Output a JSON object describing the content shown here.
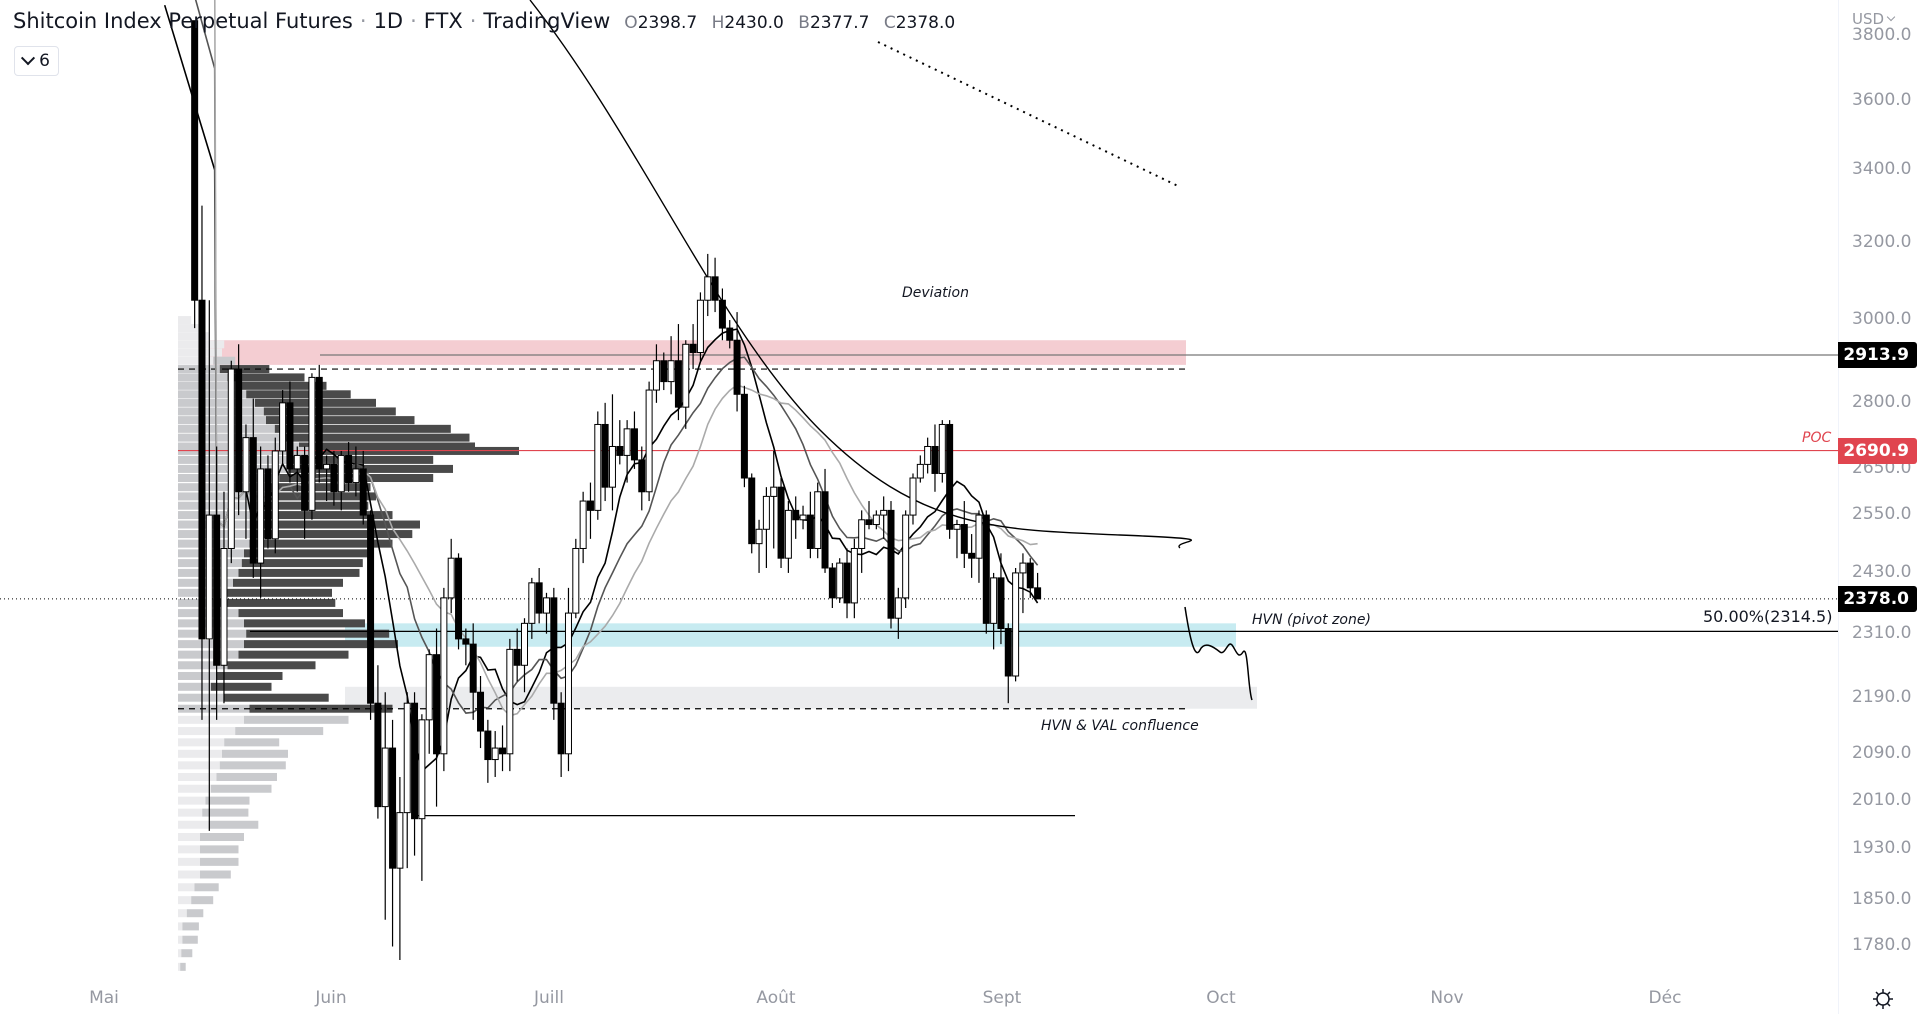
{
  "header": {
    "symbol_title": "Shitcoin Index Perpetual Futures",
    "interval": "1D",
    "exchange": "FTX",
    "source": "TradingView",
    "ohlc": {
      "open_key": "O",
      "open": "2398.7",
      "high_key": "H",
      "high": "2430.0",
      "low_key": "B",
      "low": "2377.7",
      "close_key": "C",
      "close": "2378.0"
    },
    "indicators_collapse": {
      "count": "6",
      "icon": "chevron-down-icon"
    }
  },
  "price_axis": {
    "currency": "USD",
    "labels": [
      "3800.0",
      "3600.0",
      "3400.0",
      "3200.0",
      "3000.0",
      "2800.0",
      "2650.0",
      "2550.0",
      "2430.0",
      "2310.0",
      "2190.0",
      "2090.0",
      "2010.0",
      "1930.0",
      "1850.0",
      "1780.0"
    ],
    "tags": [
      {
        "value": "2913.9",
        "color": "#000000"
      },
      {
        "value": "2690.9",
        "color": "#e0454f"
      },
      {
        "value": "2378.0",
        "color": "#000000"
      }
    ]
  },
  "time_axis": {
    "labels": [
      "Mai",
      "Juin",
      "Juill",
      "Août",
      "Sept",
      "Oct",
      "Nov",
      "Déc"
    ],
    "settings_icon": "gear-icon"
  },
  "annotations": {
    "deviation": "Deviation",
    "poc": "POC",
    "hvn_pivot": "HVN (pivot zone)",
    "hvn_val": "HVN & VAL confluence",
    "fib_50": "50.00%(2314.5)"
  },
  "colors": {
    "up_body": "#ffffff",
    "down_body": "#000000",
    "wick": "#000000",
    "poc_line": "#e0454f",
    "resistance_zone": "#f4cdd2",
    "pivot_zone": "#c7ebf1",
    "val_zone": "#ebecee",
    "vp_up_dark": "#4a4a4a",
    "vp_up_light": "#c9cacd",
    "vp_down_light": "#ebebed"
  },
  "chart_data": {
    "type": "candlestick",
    "title": "Shitcoin Index Perpetual Futures · 1D · FTX",
    "scale": "log",
    "ylim": [
      1740,
      3850
    ],
    "x_months": [
      "Mai",
      "Juin",
      "Juill",
      "Août",
      "Sept",
      "Oct",
      "Nov",
      "Déc"
    ],
    "levels": {
      "resistance_line": 2913.9,
      "poc": 2690.9,
      "last_close": 2378.0,
      "fib_50": 2314.5,
      "val_dashed": 2170,
      "range_low": 1985,
      "upper_dashed": 2880
    },
    "zones": [
      {
        "name": "resistance",
        "from": 2890,
        "to": 2950
      },
      {
        "name": "HVN pivot",
        "from": 2285,
        "to": 2330
      },
      {
        "name": "HVN & VAL confluence",
        "from": 2170,
        "to": 2210
      }
    ],
    "start_day_offset": 5,
    "candles": [
      [
        3850,
        3850,
        2980,
        3050
      ],
      [
        3050,
        3300,
        2150,
        2300
      ],
      [
        2300,
        3050,
        1960,
        2550
      ],
      [
        2550,
        2700,
        2150,
        2250
      ],
      [
        2250,
        2600,
        2180,
        2480
      ],
      [
        2480,
        2900,
        2450,
        2880
      ],
      [
        2880,
        2940,
        2550,
        2600
      ],
      [
        2600,
        2750,
        2500,
        2720
      ],
      [
        2720,
        2810,
        2420,
        2450
      ],
      [
        2450,
        2700,
        2380,
        2650
      ],
      [
        2650,
        2680,
        2480,
        2500
      ],
      [
        2500,
        2720,
        2470,
        2690
      ],
      [
        2690,
        2830,
        2660,
        2800
      ],
      [
        2800,
        2850,
        2620,
        2650
      ],
      [
        2650,
        2700,
        2600,
        2680
      ],
      [
        2680,
        2700,
        2500,
        2560
      ],
      [
        2560,
        2870,
        2540,
        2860
      ],
      [
        2860,
        2890,
        2620,
        2650
      ],
      [
        2650,
        2680,
        2580,
        2660
      ],
      [
        2660,
        2690,
        2570,
        2600
      ],
      [
        2600,
        2690,
        2560,
        2680
      ],
      [
        2680,
        2710,
        2600,
        2620
      ],
      [
        2620,
        2700,
        2590,
        2650
      ],
      [
        2650,
        2690,
        2530,
        2550
      ],
      [
        2550,
        2560,
        2150,
        2180
      ],
      [
        2180,
        2250,
        1980,
        2000
      ],
      [
        2000,
        2200,
        1820,
        2100
      ],
      [
        2100,
        2150,
        1780,
        1900
      ],
      [
        1900,
        2050,
        1760,
        1990
      ],
      [
        1990,
        2200,
        1900,
        2180
      ],
      [
        2180,
        2200,
        1920,
        1980
      ],
      [
        1980,
        2160,
        1880,
        2150
      ],
      [
        2150,
        2280,
        2090,
        2270
      ],
      [
        2270,
        2320,
        2000,
        2090
      ],
      [
        2090,
        2400,
        2060,
        2380
      ],
      [
        2380,
        2500,
        2350,
        2460
      ],
      [
        2460,
        2470,
        2280,
        2300
      ],
      [
        2300,
        2320,
        2250,
        2290
      ],
      [
        2290,
        2330,
        2150,
        2200
      ],
      [
        2200,
        2230,
        2100,
        2130
      ],
      [
        2130,
        2150,
        2040,
        2080
      ],
      [
        2080,
        2130,
        2050,
        2100
      ],
      [
        2100,
        2140,
        2060,
        2090
      ],
      [
        2090,
        2300,
        2060,
        2280
      ],
      [
        2280,
        2320,
        2220,
        2250
      ],
      [
        2250,
        2340,
        2200,
        2330
      ],
      [
        2330,
        2420,
        2300,
        2410
      ],
      [
        2410,
        2440,
        2330,
        2350
      ],
      [
        2350,
        2390,
        2310,
        2380
      ],
      [
        2380,
        2400,
        2150,
        2180
      ],
      [
        2180,
        2200,
        2050,
        2090
      ],
      [
        2090,
        2400,
        2060,
        2350
      ],
      [
        2350,
        2500,
        2340,
        2480
      ],
      [
        2480,
        2600,
        2450,
        2580
      ],
      [
        2580,
        2620,
        2500,
        2560
      ],
      [
        2560,
        2780,
        2540,
        2750
      ],
      [
        2750,
        2800,
        2580,
        2610
      ],
      [
        2610,
        2820,
        2560,
        2700
      ],
      [
        2700,
        2760,
        2660,
        2680
      ],
      [
        2680,
        2760,
        2620,
        2740
      ],
      [
        2740,
        2780,
        2650,
        2670
      ],
      [
        2670,
        2700,
        2560,
        2600
      ],
      [
        2600,
        2850,
        2580,
        2830
      ],
      [
        2830,
        2940,
        2800,
        2900
      ],
      [
        2900,
        2920,
        2830,
        2850
      ],
      [
        2850,
        2960,
        2820,
        2900
      ],
      [
        2900,
        2990,
        2760,
        2790
      ],
      [
        2790,
        2950,
        2740,
        2940
      ],
      [
        2940,
        2990,
        2880,
        2920
      ],
      [
        2920,
        3070,
        2900,
        3050
      ],
      [
        3050,
        3170,
        3010,
        3110
      ],
      [
        3110,
        3160,
        3020,
        3050
      ],
      [
        3050,
        3080,
        2950,
        2980
      ],
      [
        2980,
        3000,
        2930,
        2950
      ],
      [
        2950,
        3020,
        2780,
        2820
      ],
      [
        2820,
        2840,
        2610,
        2630
      ],
      [
        2630,
        2640,
        2470,
        2490
      ],
      [
        2490,
        2540,
        2430,
        2520
      ],
      [
        2520,
        2610,
        2440,
        2590
      ],
      [
        2590,
        2690,
        2480,
        2610
      ],
      [
        2610,
        2630,
        2440,
        2460
      ],
      [
        2460,
        2580,
        2430,
        2560
      ],
      [
        2560,
        2590,
        2500,
        2540
      ],
      [
        2540,
        2570,
        2520,
        2550
      ],
      [
        2550,
        2600,
        2460,
        2480
      ],
      [
        2480,
        2620,
        2460,
        2600
      ],
      [
        2600,
        2650,
        2430,
        2440
      ],
      [
        2440,
        2450,
        2360,
        2380
      ],
      [
        2380,
        2460,
        2370,
        2450
      ],
      [
        2450,
        2480,
        2340,
        2370
      ],
      [
        2370,
        2500,
        2340,
        2480
      ],
      [
        2480,
        2560,
        2430,
        2540
      ],
      [
        2540,
        2580,
        2520,
        2530
      ],
      [
        2530,
        2560,
        2520,
        2550
      ],
      [
        2550,
        2590,
        2500,
        2560
      ],
      [
        2560,
        2580,
        2320,
        2340
      ],
      [
        2340,
        2400,
        2300,
        2380
      ],
      [
        2380,
        2560,
        2360,
        2550
      ],
      [
        2550,
        2640,
        2530,
        2630
      ],
      [
        2630,
        2680,
        2620,
        2660
      ],
      [
        2660,
        2720,
        2640,
        2700
      ],
      [
        2700,
        2750,
        2600,
        2640
      ],
      [
        2640,
        2760,
        2620,
        2750
      ],
      [
        2750,
        2760,
        2500,
        2520
      ],
      [
        2520,
        2540,
        2460,
        2530
      ],
      [
        2530,
        2580,
        2440,
        2470
      ],
      [
        2470,
        2510,
        2420,
        2460
      ],
      [
        2460,
        2560,
        2410,
        2550
      ],
      [
        2550,
        2560,
        2310,
        2330
      ],
      [
        2330,
        2430,
        2280,
        2420
      ],
      [
        2420,
        2470,
        2290,
        2320
      ],
      [
        2320,
        2330,
        2180,
        2230
      ],
      [
        2230,
        2440,
        2220,
        2430
      ],
      [
        2430,
        2470,
        2350,
        2450
      ],
      [
        2450,
        2460,
        2380,
        2400
      ],
      [
        2400,
        2430,
        2377.7,
        2378
      ]
    ],
    "moving_averages": [
      {
        "name": "MA fast",
        "color": "#000000",
        "width": 1.6
      },
      {
        "name": "MA mid",
        "color": "#555555",
        "width": 1.6
      },
      {
        "name": "MA slow",
        "color": "#aaaaaa",
        "width": 1.6
      },
      {
        "name": "MA long",
        "color": "#000000",
        "width": 1.4
      }
    ],
    "projection_path": [
      [
        2370,
        0
      ],
      [
        2305,
        0.3
      ],
      [
        2310,
        0.5
      ],
      [
        2300,
        0.7
      ],
      [
        2318,
        0.85
      ],
      [
        2298,
        1
      ],
      [
        2305,
        1.2
      ],
      [
        2180,
        2
      ]
    ],
    "volume_profile": [
      [
        3000,
        12,
        0
      ],
      [
        2980,
        20,
        0
      ],
      [
        2960,
        28,
        0
      ],
      [
        2940,
        42,
        0
      ],
      [
        2920,
        40,
        0
      ],
      [
        2900,
        32,
        20
      ],
      [
        2880,
        38,
        45
      ],
      [
        2860,
        45,
        70
      ],
      [
        2840,
        55,
        80
      ],
      [
        2820,
        62,
        95
      ],
      [
        2800,
        70,
        110
      ],
      [
        2780,
        78,
        120
      ],
      [
        2760,
        80,
        135
      ],
      [
        2740,
        88,
        160
      ],
      [
        2720,
        95,
        170
      ],
      [
        2700,
        110,
        160
      ],
      [
        2690,
        120,
        190
      ],
      [
        2670,
        102,
        130
      ],
      [
        2650,
        100,
        150
      ],
      [
        2630,
        92,
        140
      ],
      [
        2610,
        85,
        90
      ],
      [
        2590,
        80,
        100
      ],
      [
        2570,
        78,
        95
      ],
      [
        2550,
        75,
        120
      ],
      [
        2530,
        70,
        150
      ],
      [
        2510,
        68,
        145
      ],
      [
        2490,
        65,
        130
      ],
      [
        2470,
        60,
        115
      ],
      [
        2450,
        58,
        110
      ],
      [
        2430,
        55,
        110
      ],
      [
        2410,
        50,
        100
      ],
      [
        2390,
        45,
        95
      ],
      [
        2370,
        38,
        105
      ],
      [
        2350,
        55,
        95
      ],
      [
        2330,
        60,
        110
      ],
      [
        2310,
        62,
        130
      ],
      [
        2290,
        60,
        140
      ],
      [
        2270,
        55,
        100
      ],
      [
        2250,
        45,
        80
      ],
      [
        2230,
        35,
        60
      ],
      [
        2210,
        30,
        55
      ],
      [
        2190,
        42,
        95
      ],
      [
        2170,
        65,
        130
      ],
      [
        2150,
        60,
        95
      ],
      [
        2130,
        52,
        80
      ],
      [
        2110,
        42,
        50
      ],
      [
        2090,
        40,
        60
      ],
      [
        2070,
        38,
        60
      ],
      [
        2050,
        35,
        55
      ],
      [
        2030,
        30,
        55
      ],
      [
        2010,
        25,
        40
      ],
      [
        1990,
        22,
        42
      ],
      [
        1970,
        28,
        45
      ],
      [
        1950,
        20,
        40
      ],
      [
        1930,
        20,
        35
      ],
      [
        1910,
        20,
        35
      ],
      [
        1890,
        20,
        28
      ],
      [
        1870,
        15,
        22
      ],
      [
        1850,
        12,
        20
      ],
      [
        1830,
        8,
        15
      ],
      [
        1810,
        4,
        15
      ],
      [
        1790,
        4,
        14
      ],
      [
        1770,
        3,
        10
      ],
      [
        1750,
        2,
        5
      ]
    ]
  }
}
